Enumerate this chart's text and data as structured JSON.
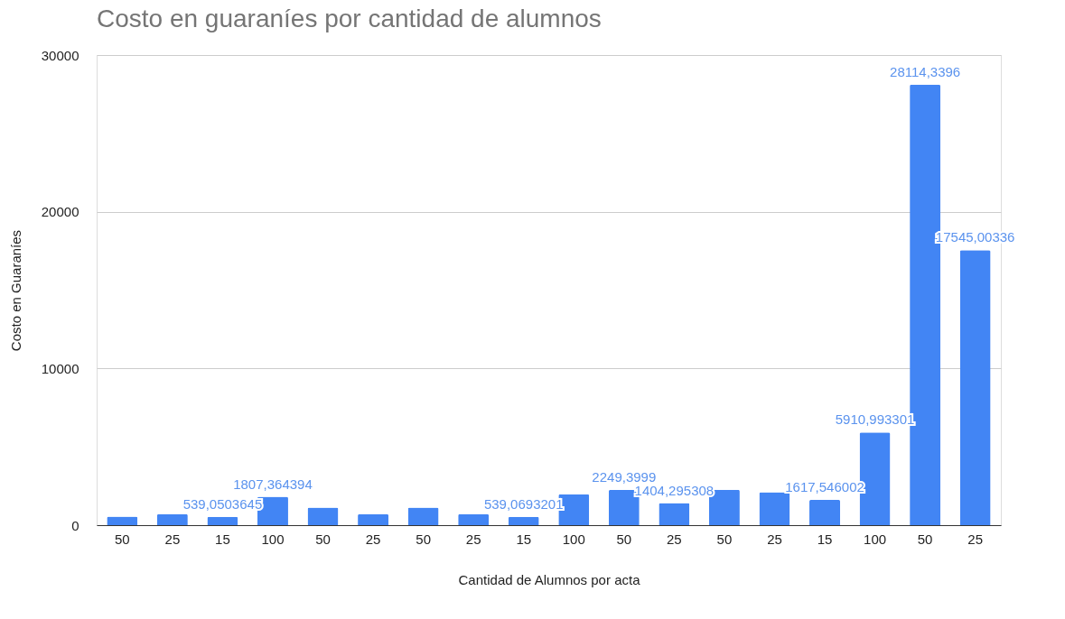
{
  "chart_data": {
    "type": "bar",
    "title": "Costo en guaraníes por cantidad de alumnos",
    "xlabel": "Cantidad de Alumnos por acta",
    "ylabel": "Costo en Guaraníes",
    "categories": [
      "50",
      "25",
      "15",
      "100",
      "50",
      "25",
      "50",
      "25",
      "15",
      "100",
      "50",
      "25",
      "50",
      "25",
      "15",
      "100",
      "50",
      "25"
    ],
    "values": [
      544.67,
      701.7539,
      539.0503645,
      1807.364394,
      1124.55,
      701.7539,
      1124.55,
      701.7539,
      539.0693201,
      1970,
      2249.3999,
      1404.295308,
      2257.2,
      2105,
      1617.546002,
      5910.993301,
      28114.3396,
      17545.00336
    ],
    "value_labels": [
      null,
      null,
      "539,0503645",
      "1807,364394",
      null,
      null,
      null,
      null,
      "539,0693201",
      null,
      "2249,3999",
      "1404,295308",
      null,
      null,
      "1617,546002",
      "5910,993301",
      "28114,3396",
      "17545,00336"
    ],
    "color": "#4285f4",
    "ylim": [
      0,
      30000
    ],
    "yticks": [
      0,
      10000,
      20000,
      30000
    ],
    "grid": "y"
  }
}
